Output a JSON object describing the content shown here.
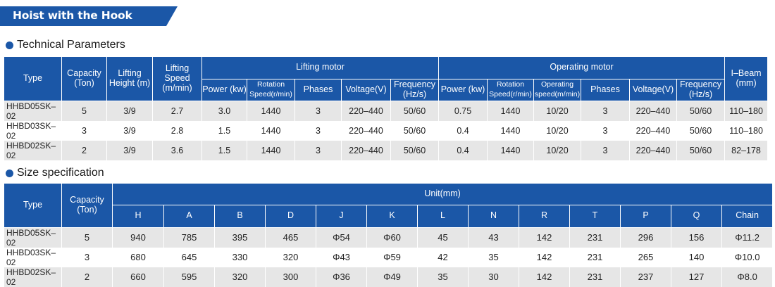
{
  "banner": {
    "title": "Hoist with the Hook"
  },
  "tech": {
    "section_title": "Technical Parameters",
    "headers": {
      "type": "Type",
      "capacity": "Capacity (Ton)",
      "lifting_height": "Lifting Height (m)",
      "lifting_speed": "Lifting Speed (m/min)",
      "lifting_motor": "Lifting motor",
      "operating_motor": "Operating motor",
      "ibeam": "I–Beam (mm)",
      "lm_power": "Power (kw)",
      "lm_rotation": "Rotation Speed(r/min)",
      "lm_phases": "Phases",
      "lm_voltage": "Voltage(V)",
      "lm_frequency": "Frequency (Hz/s)",
      "om_power": "Power (kw)",
      "om_rotation": "Rotation Speed(r/min)",
      "om_operating": "Operating speed(m/min)",
      "om_phases": "Phases",
      "om_voltage": "Voltage(V)",
      "om_frequency": "Frequency (Hz/s)"
    },
    "rows": [
      [
        "HHBD05SK–02",
        "5",
        "3/9",
        "2.7",
        "3.0",
        "1440",
        "3",
        "220–440",
        "50/60",
        "0.75",
        "1440",
        "10/20",
        "3",
        "220–440",
        "50/60",
        "110–180"
      ],
      [
        "HHBD03SK–02",
        "3",
        "3/9",
        "2.8",
        "1.5",
        "1440",
        "3",
        "220–440",
        "50/60",
        "0.4",
        "1440",
        "10/20",
        "3",
        "220–440",
        "50/60",
        "110–180"
      ],
      [
        "HHBD02SK–02",
        "2",
        "3/9",
        "3.6",
        "1.5",
        "1440",
        "3",
        "220–440",
        "50/60",
        "0.4",
        "1440",
        "10/20",
        "3",
        "220–440",
        "50/60",
        "82–178"
      ]
    ]
  },
  "size": {
    "section_title": "Size specification",
    "headers": {
      "type": "Type",
      "capacity": "Capacity (Ton)",
      "unit": "Unit(mm)",
      "cols": [
        "H",
        "A",
        "B",
        "D",
        "J",
        "K",
        "L",
        "N",
        "R",
        "T",
        "P",
        "Q",
        "Chain"
      ]
    },
    "rows": [
      [
        "HHBD05SK–02",
        "5",
        "940",
        "785",
        "395",
        "465",
        "Φ54",
        "Φ60",
        "45",
        "43",
        "142",
        "231",
        "296",
        "156",
        "Φ11.2"
      ],
      [
        "HHBD03SK–02",
        "3",
        "680",
        "645",
        "330",
        "320",
        "Φ43",
        "Φ59",
        "42",
        "35",
        "142",
        "231",
        "265",
        "140",
        "Φ10.0"
      ],
      [
        "HHBD02SK–02",
        "2",
        "660",
        "595",
        "320",
        "300",
        "Φ36",
        "Φ49",
        "35",
        "30",
        "142",
        "231",
        "237",
        "127",
        "Φ8.0"
      ]
    ]
  },
  "colors": {
    "header_blue": "#1b57a7",
    "row_shade": "#e6e6e6"
  }
}
